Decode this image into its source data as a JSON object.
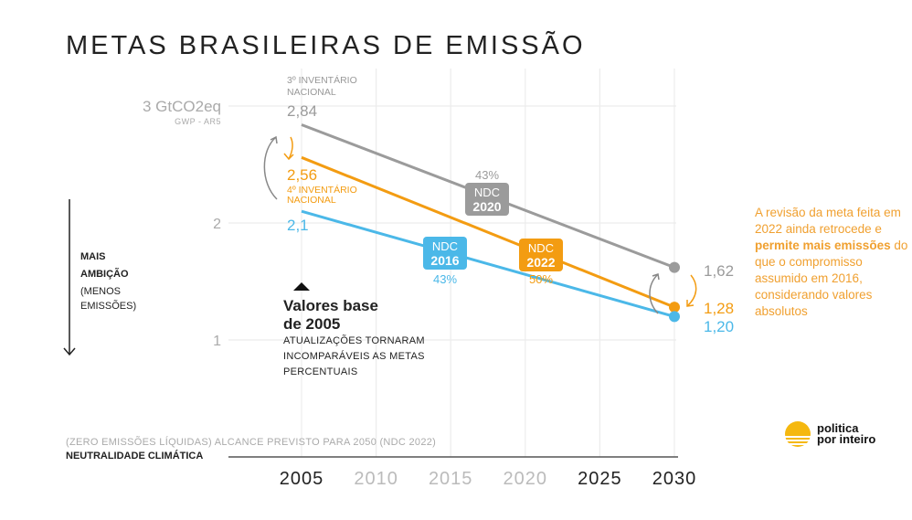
{
  "title": "METAS BRASILEIRAS DE EMISSÃO",
  "chart_data": {
    "type": "line",
    "title": "METAS BRASILEIRAS DE EMISSÃO",
    "ylabel": "GtCO2eq",
    "y_unit_label": "3 GtCO2eq",
    "y_subunit_label": "GWP - AR5",
    "yticks": [
      {
        "value": 3,
        "label": "3 GtCO2eq"
      },
      {
        "value": 2,
        "label": "2"
      },
      {
        "value": 1,
        "label": "1"
      }
    ],
    "xticks": [
      {
        "value": 2005,
        "label": "2005",
        "emphasis": true
      },
      {
        "value": 2010,
        "label": "2010",
        "emphasis": false
      },
      {
        "value": 2015,
        "label": "2015",
        "emphasis": false
      },
      {
        "value": 2020,
        "label": "2020",
        "emphasis": false
      },
      {
        "value": 2025,
        "label": "2025",
        "emphasis": true
      },
      {
        "value": 2030,
        "label": "2030",
        "emphasis": true
      }
    ],
    "xlim": [
      2005,
      2030
    ],
    "ylim": [
      0.6,
      3.3
    ],
    "grid": true,
    "series": [
      {
        "name": "NDC 2020",
        "badge_top": "NDC",
        "badge_bottom": "2020",
        "color": "#9b9b9b",
        "x": [
          2005,
          2030
        ],
        "y": [
          2.84,
          1.62
        ],
        "start_label": "2,84",
        "end_label": "1,62",
        "pct": "43%",
        "inventory": "3º INVENTÁRIO NACIONAL"
      },
      {
        "name": "NDC 2022",
        "badge_top": "NDC",
        "badge_bottom": "2022",
        "color": "#f39c12",
        "x": [
          2005,
          2030
        ],
        "y": [
          2.56,
          1.28
        ],
        "start_label": "2,56",
        "end_label": "1,28",
        "pct": "50%",
        "inventory": "4º INVENTÁRIO NACIONAL"
      },
      {
        "name": "NDC 2016",
        "badge_top": "NDC",
        "badge_bottom": "2016",
        "color": "#4bb8e8",
        "x": [
          2005,
          2030
        ],
        "y": [
          2.1,
          1.2
        ],
        "start_label": "2,1",
        "end_label": "1,20",
        "pct": "43%"
      }
    ]
  },
  "annotations": {
    "ambition_bold1": "MAIS",
    "ambition_bold2": "AMBIÇÃO",
    "ambition_sub1": "(MENOS",
    "ambition_sub2": "EMISSÕES)",
    "base_title1": "Valores base",
    "base_title2": "de 2005",
    "base_sub1": "ATUALIZAÇÕES TORNARAM",
    "base_sub2": "INCOMPARÁVEIS AS METAS",
    "base_sub3": "PERCENTUAIS",
    "neutrality_note": "(ZERO EMISSÕES LÍQUIDAS) ALCANCE PREVISTO PARA 2050 (NDC 2022)",
    "neutrality_label": "NEUTRALIDADE CLIMÁTICA",
    "note_p1": "A revisão da meta feita em 2022 ainda retrocede e ",
    "note_bold": "permite mais emissões",
    "note_p2": " do que o compromisso assumido em 2016, considerando valores absolutos"
  },
  "logo": {
    "line1": "politica",
    "line2": "por inteiro",
    "color": "#f5b80f"
  },
  "colors": {
    "gray": "#9b9b9b",
    "orange": "#f39c12",
    "blue": "#4bb8e8",
    "note": "#f0a030"
  }
}
